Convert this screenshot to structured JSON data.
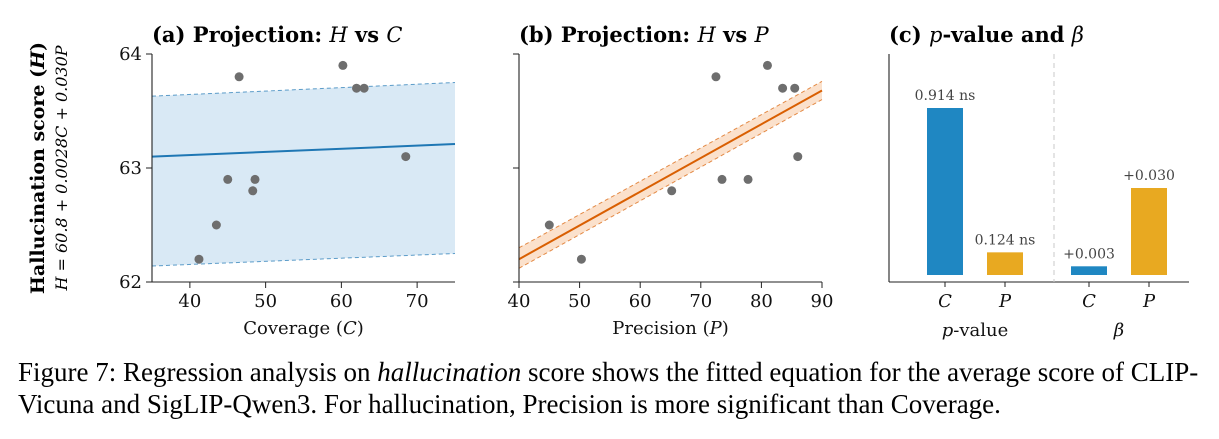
{
  "figure": {
    "ylabel_main": "Hallucination score (H)",
    "ylabel_eq": "H = 60.8 + 0.0028C + 0.030P"
  },
  "caption": {
    "fig_label": "Figure 7: Regression analysis on ",
    "emph": "hallucination",
    "rest": " score shows the fitted equation for the average score of CLIP-Vicuna and SigLIP-Qwen3. For hallucination, Precision is more significant than Coverage."
  },
  "chart_data": [
    {
      "type": "scatter",
      "title": "(a) Projection: H vs C",
      "xlabel": "Coverage (C)",
      "ylabel": "",
      "xlim": [
        35,
        75
      ],
      "ylim": [
        62,
        64
      ],
      "xticks": [
        40,
        50,
        60,
        70
      ],
      "yticks": [
        62,
        63,
        64
      ],
      "points": [
        [
          41.2,
          62.2
        ],
        [
          43.5,
          62.5
        ],
        [
          45.0,
          62.9
        ],
        [
          46.5,
          63.8
        ],
        [
          48.3,
          62.8
        ],
        [
          48.6,
          62.9
        ],
        [
          60.2,
          63.9
        ],
        [
          62.0,
          63.7
        ],
        [
          63.0,
          63.7
        ],
        [
          68.5,
          63.1
        ]
      ],
      "fit_line": [
        [
          35,
          63.1
        ],
        [
          75,
          63.21
        ]
      ],
      "band_upper": [
        [
          35,
          63.63
        ],
        [
          75,
          63.75
        ]
      ],
      "band_lower": [
        [
          35,
          62.14
        ],
        [
          75,
          62.25
        ]
      ],
      "colors": {
        "points": "#6e6e6e",
        "line": "#1f77b4",
        "band": "#d9e9f5"
      }
    },
    {
      "type": "scatter",
      "title": "(b) Projection: H vs P",
      "xlabel": "Precision (P)",
      "ylabel": "",
      "xlim": [
        40,
        90
      ],
      "ylim": [
        62,
        64
      ],
      "xticks": [
        40,
        50,
        60,
        70,
        80,
        90
      ],
      "yticks": [
        62,
        63,
        64
      ],
      "points": [
        [
          45.0,
          62.5
        ],
        [
          50.3,
          62.2
        ],
        [
          65.2,
          62.8
        ],
        [
          72.5,
          63.8
        ],
        [
          73.5,
          62.9
        ],
        [
          77.8,
          62.9
        ],
        [
          81.0,
          63.9
        ],
        [
          83.5,
          63.7
        ],
        [
          85.5,
          63.7
        ],
        [
          86.0,
          63.1
        ]
      ],
      "fit_line": [
        [
          40,
          62.2
        ],
        [
          90,
          63.68
        ]
      ],
      "band_upper": [
        [
          40,
          62.3
        ],
        [
          90,
          63.76
        ]
      ],
      "band_lower": [
        [
          40,
          62.12
        ],
        [
          90,
          63.6
        ]
      ],
      "colors": {
        "points": "#6e6e6e",
        "line": "#d95f02",
        "band": "#fbe1cc"
      }
    },
    {
      "type": "bar",
      "title": "(c) p-value and β",
      "groups": [
        "p-value",
        "β"
      ],
      "categories": [
        "C",
        "P",
        "C",
        "P"
      ],
      "values": [
        0.914,
        0.124,
        0.003,
        0.03
      ],
      "bar_labels": [
        "0.914 ns",
        "0.124 ns",
        "+0.003",
        "+0.030"
      ],
      "group_index": [
        0,
        0,
        1,
        1
      ],
      "colors": {
        "C": "#1f87c2",
        "P": "#e8a921"
      }
    }
  ]
}
